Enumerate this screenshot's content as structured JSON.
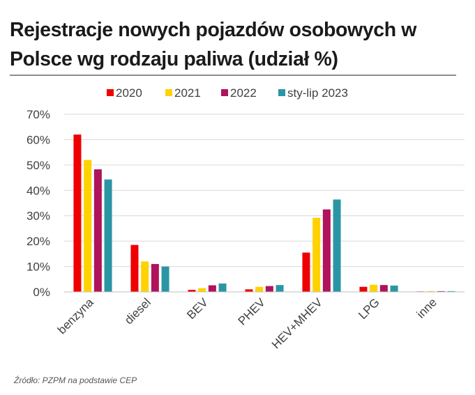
{
  "title": "Rejestracje nowych pojazdów osobowych w Polsce wg rodzaju paliwa (udział %)",
  "source": "Źródło: PZPM na podstawie CEP",
  "chart_data": {
    "type": "bar",
    "title": "Rejestracje nowych pojazdów osobowych w Polsce wg rodzaju paliwa (udział %)",
    "xlabel": "",
    "ylabel": "",
    "categories": [
      "benzyna",
      "diesel",
      "BEV",
      "PHEV",
      "HEV+MHEV",
      "LPG",
      "inne"
    ],
    "series": [
      {
        "name": "2020",
        "color": "#ee0000",
        "values": [
          62,
          18.5,
          0.8,
          1,
          15.5,
          2,
          0.2
        ]
      },
      {
        "name": "2021",
        "color": "#ffd200",
        "values": [
          52,
          12,
          1.5,
          2,
          29.2,
          2.8,
          0.3
        ]
      },
      {
        "name": "2022",
        "color": "#b0135b",
        "values": [
          48.3,
          11,
          2.6,
          2.3,
          32.5,
          2.7,
          0.3
        ]
      },
      {
        "name": "sty-lip 2023",
        "color": "#2a96a4",
        "values": [
          44.3,
          10,
          3.3,
          2.7,
          36.4,
          2.5,
          0.3
        ]
      }
    ],
    "ylim": [
      0,
      70
    ],
    "yticks": [
      0,
      10,
      20,
      30,
      40,
      50,
      60,
      70
    ],
    "ytick_labels": [
      "0%",
      "10%",
      "20%",
      "30%",
      "40%",
      "50%",
      "60%",
      "70%"
    ],
    "grid": true,
    "legend_position": "top"
  }
}
